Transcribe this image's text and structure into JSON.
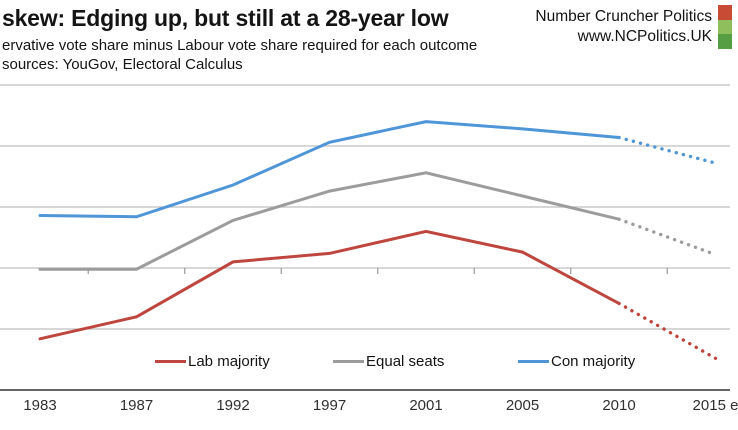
{
  "header": {
    "title": "skew: Edging up, but still at a 28-year low",
    "subtitle": "ervative vote share minus Labour vote share required for each outcome",
    "sources": "sources: YouGov, Electoral Calculus",
    "brand_name": "Number Cruncher Politics",
    "brand_url": "www.NCPolitics.UK",
    "logo_colors": [
      "#C84B36",
      "#8FBF5C",
      "#559E44"
    ]
  },
  "chart_data": {
    "type": "line",
    "categories": [
      "1983",
      "1987",
      "1992",
      "1997",
      "2001",
      "2005",
      "2010",
      "2015 e"
    ],
    "series": [
      {
        "name": "Lab majority",
        "color": "#BE463E",
        "values": [
          -5.8,
          -4.0,
          0.5,
          1.2,
          3.0,
          1.3,
          -2.9,
          -7.4
        ],
        "dotted_from_index": 6
      },
      {
        "name": "Equal seats",
        "color": "#9C9C9C",
        "values": [
          -0.1,
          -0.1,
          3.9,
          6.3,
          7.8,
          5.9,
          4.0,
          1.1
        ],
        "dotted_from_index": 6
      },
      {
        "name": "Con majority",
        "color": "#4E96D8",
        "values": [
          4.3,
          4.2,
          6.8,
          10.3,
          12.0,
          11.4,
          10.7,
          8.6
        ],
        "dotted_from_index": 6
      }
    ],
    "ylim": [
      -10,
      15
    ],
    "gridline_step": 5,
    "grid": true,
    "y_axis_labels_visible": false,
    "x_axis_zero_line_ticks": true,
    "legend_position": "bottom",
    "grid_color": "#BFBFBF",
    "axis_color": "#666666"
  },
  "legend": {
    "items": [
      {
        "label": "Lab majority"
      },
      {
        "label": "Equal seats"
      },
      {
        "label": "Con majority"
      }
    ]
  }
}
